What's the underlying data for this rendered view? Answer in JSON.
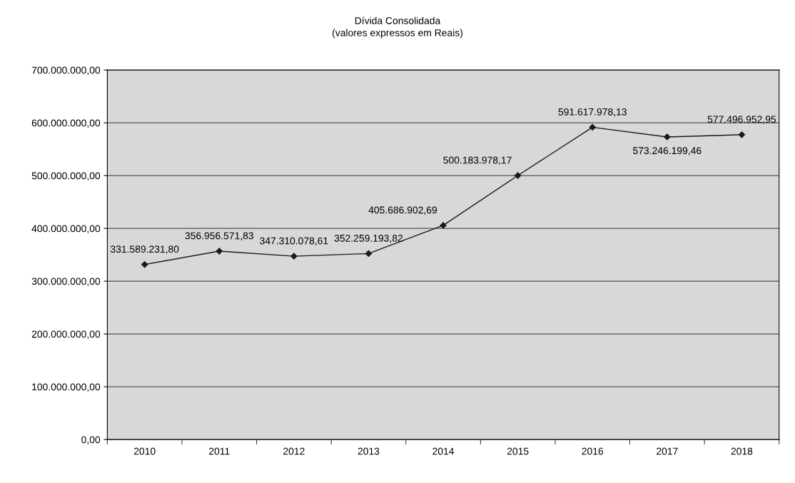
{
  "chart_data": {
    "type": "line",
    "title": "Dívida Consolidada",
    "subtitle": "(valores expressos em Reais)",
    "categories": [
      "2010",
      "2011",
      "2012",
      "2013",
      "2014",
      "2015",
      "2016",
      "2017",
      "2018"
    ],
    "series": [
      {
        "color": "#1a1a1a",
        "values": [
          331589231.8,
          356956571.83,
          347310078.61,
          352259193.82,
          405686902.69,
          500183978.17,
          591617978.13,
          573246199.46,
          577496952.95
        ],
        "value_labels": [
          "331.589.231,80",
          "356.956.571,83",
          "347.310.078,61",
          "352.259.193,82",
          "405.686.902,69",
          "500.183.978,17",
          "591.617.978,13",
          "573.246.199,46",
          "577.496.952,95"
        ]
      }
    ],
    "ylim": [
      0,
      700000000
    ],
    "yticks": [
      {
        "value": 0,
        "label": "0,00"
      },
      {
        "value": 100000000,
        "label": "100.000.000,00"
      },
      {
        "value": 200000000,
        "label": "200.000.000,00"
      },
      {
        "value": 300000000,
        "label": "300.000.000,00"
      },
      {
        "value": 400000000,
        "label": "400.000.000,00"
      },
      {
        "value": 500000000,
        "label": "500.000.000,00"
      },
      {
        "value": 600000000,
        "label": "600.000.000,00"
      },
      {
        "value": 700000000,
        "label": "700.000.000,00"
      }
    ],
    "grid": "y",
    "marker": "diamond",
    "line_style": "solid"
  }
}
